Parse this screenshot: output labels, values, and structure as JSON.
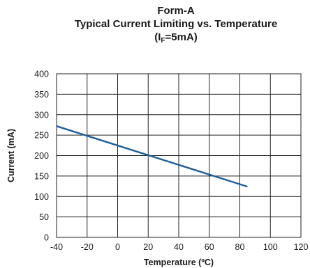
{
  "chart_data": {
    "type": "line",
    "title_line1": "Form-A",
    "title_line2": "Typical Current Limiting vs. Temperature",
    "title_line3_prefix": "(I",
    "title_line3_sub": "F",
    "title_line3_suffix": "=5mA)",
    "xlabel": "Temperature (ºC)",
    "ylabel": "Current (mA)",
    "xlim": [
      -40,
      120
    ],
    "ylim": [
      0,
      400
    ],
    "xticks": [
      "-40",
      "-20",
      "0",
      "20",
      "40",
      "60",
      "80",
      "100",
      "120"
    ],
    "yticks": [
      "0",
      "50",
      "100",
      "150",
      "200",
      "250",
      "300",
      "350",
      "400"
    ],
    "grid": true,
    "line_color": "#1f5f99",
    "series": [
      {
        "x": [
          -40,
          85
        ],
        "y": [
          272,
          124
        ]
      }
    ]
  }
}
